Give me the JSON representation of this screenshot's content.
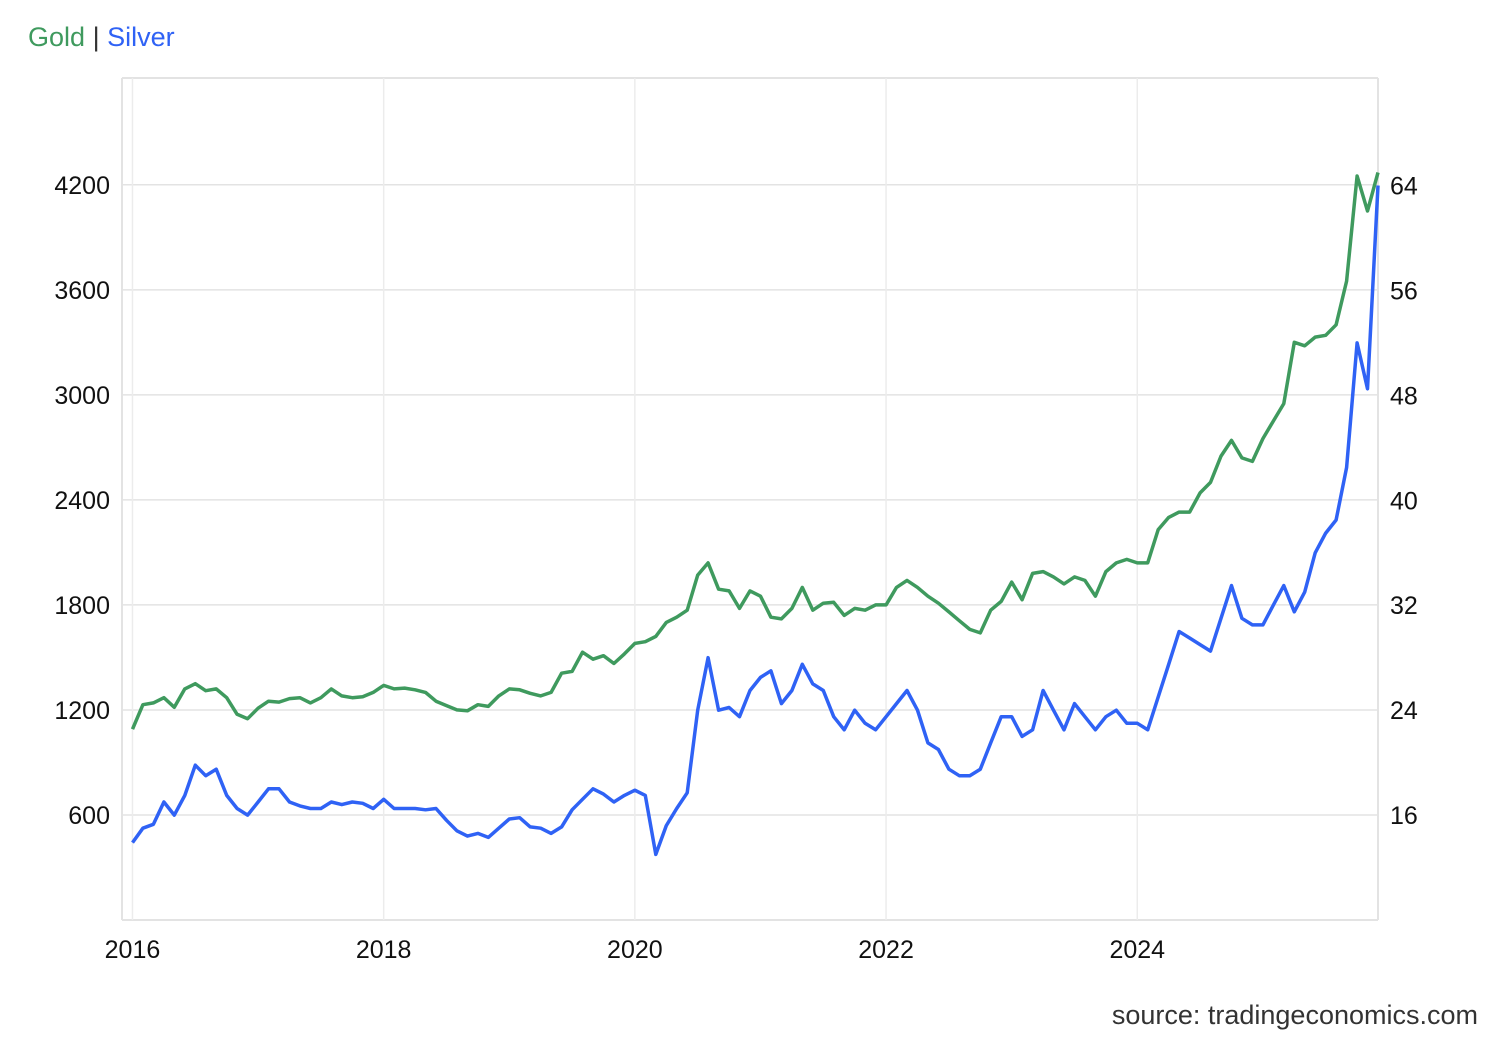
{
  "legend": {
    "gold": "Gold",
    "separator": "|",
    "silver": "Silver"
  },
  "source": "source: tradingeconomics.com",
  "colors": {
    "gold": "#3f9a5e",
    "silver": "#2f62f5",
    "grid": "#e3e3e3"
  },
  "chart_data": {
    "type": "line",
    "title": "",
    "grid": true,
    "legend_placement": "top-left",
    "x_ticks": [
      "2016",
      "2018",
      "2020",
      "2022",
      "2024"
    ],
    "xlim": [
      "2015-12",
      "2025-12"
    ],
    "left_axis": {
      "series": "Gold",
      "ticks": [
        600,
        1200,
        1800,
        2400,
        3000,
        3600,
        4200
      ],
      "ylim": [
        0,
        4810
      ]
    },
    "right_axis": {
      "series": "Silver",
      "ticks": [
        16,
        24,
        32,
        40,
        48,
        56,
        64
      ],
      "ylim": [
        8,
        72.2
      ]
    },
    "start": "2016-01",
    "frequency": "monthly",
    "series": [
      {
        "name": "Gold",
        "axis": "left",
        "values": [
          1090,
          1230,
          1240,
          1270,
          1215,
          1320,
          1350,
          1310,
          1320,
          1270,
          1175,
          1150,
          1210,
          1250,
          1245,
          1265,
          1270,
          1240,
          1270,
          1320,
          1280,
          1270,
          1275,
          1300,
          1340,
          1320,
          1325,
          1315,
          1300,
          1250,
          1225,
          1200,
          1195,
          1230,
          1220,
          1280,
          1320,
          1315,
          1295,
          1280,
          1300,
          1410,
          1420,
          1530,
          1490,
          1510,
          1465,
          1520,
          1580,
          1590,
          1620,
          1700,
          1730,
          1770,
          1970,
          2040,
          1890,
          1880,
          1780,
          1880,
          1850,
          1730,
          1720,
          1780,
          1900,
          1770,
          1810,
          1815,
          1740,
          1780,
          1770,
          1800,
          1800,
          1900,
          1940,
          1900,
          1850,
          1810,
          1760,
          1710,
          1660,
          1640,
          1770,
          1820,
          1930,
          1830,
          1980,
          1990,
          1960,
          1920,
          1960,
          1940,
          1850,
          1990,
          2040,
          2060,
          2040,
          2040,
          2230,
          2300,
          2330,
          2330,
          2440,
          2500,
          2650,
          2740,
          2640,
          2620,
          2750,
          2850,
          2950,
          3300,
          3280,
          3330,
          3340,
          3400,
          3650,
          4250,
          4050,
          4270
        ]
      },
      {
        "name": "Silver",
        "axis": "right",
        "values": [
          13.9,
          15.0,
          15.3,
          17.0,
          16.0,
          17.5,
          19.8,
          19.0,
          19.5,
          17.5,
          16.5,
          16.0,
          17.0,
          18.0,
          18.0,
          17.0,
          16.7,
          16.5,
          16.5,
          17.0,
          16.8,
          17.0,
          16.9,
          16.5,
          17.2,
          16.5,
          16.5,
          16.5,
          16.4,
          16.5,
          15.6,
          14.8,
          14.4,
          14.6,
          14.3,
          15.0,
          15.7,
          15.8,
          15.1,
          15.0,
          14.6,
          15.1,
          16.4,
          17.2,
          18.0,
          17.6,
          17.0,
          17.5,
          17.9,
          17.5,
          13.0,
          15.2,
          16.5,
          17.7,
          24.0,
          28.0,
          24.0,
          24.2,
          23.5,
          25.5,
          26.5,
          27.0,
          24.5,
          25.5,
          27.5,
          26.0,
          25.5,
          23.5,
          22.5,
          24.0,
          23.0,
          22.5,
          23.5,
          24.5,
          25.5,
          24.0,
          21.5,
          21.0,
          19.5,
          19.0,
          19.0,
          19.5,
          21.5,
          23.5,
          23.5,
          22.0,
          22.5,
          25.5,
          24.0,
          22.5,
          24.5,
          23.5,
          22.5,
          23.5,
          24.0,
          23.0,
          23.0,
          22.5,
          25.0,
          27.5,
          30.0,
          29.5,
          29.0,
          28.5,
          31.0,
          33.5,
          31.0,
          30.5,
          30.5,
          32.0,
          33.5,
          31.5,
          33.0,
          36.0,
          37.5,
          38.5,
          42.5,
          52.0,
          48.5,
          64.0
        ]
      }
    ]
  }
}
